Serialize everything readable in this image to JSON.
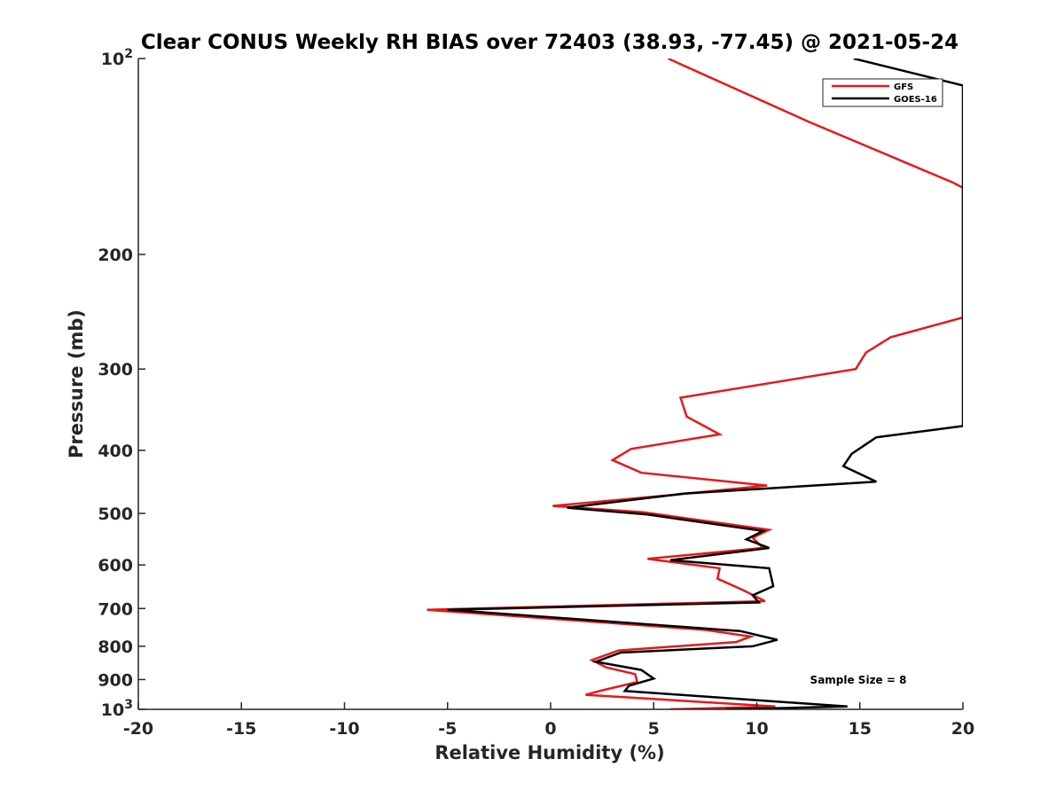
{
  "chart_data": {
    "type": "line",
    "title": "Clear CONUS Weekly RH BIAS over 72403 (38.93, -77.45) @ 2021-05-24",
    "xlabel": "Relative Humidity (%)",
    "ylabel": "Pressure (mb)",
    "xlim": [
      -20,
      20
    ],
    "ylim": [
      100,
      1000
    ],
    "y_scale": "log",
    "y_reversed": true,
    "grid": false,
    "legend_position": "top-right",
    "x_ticks": [
      -20,
      -15,
      -10,
      -5,
      0,
      5,
      10,
      15,
      20
    ],
    "x_tick_labels": [
      "-20",
      "-15",
      "-10",
      "-5",
      "0",
      "5",
      "10",
      "15",
      "20"
    ],
    "y_ticks": [
      100,
      200,
      300,
      400,
      500,
      600,
      700,
      800,
      900,
      1000
    ],
    "y_tick_labels": [
      {
        "base": "10",
        "exp": "2"
      },
      {
        "base": "200",
        "exp": ""
      },
      {
        "base": "300",
        "exp": ""
      },
      {
        "base": "400",
        "exp": ""
      },
      {
        "base": "500",
        "exp": ""
      },
      {
        "base": "600",
        "exp": ""
      },
      {
        "base": "700",
        "exp": ""
      },
      {
        "base": "800",
        "exp": ""
      },
      {
        "base": "900",
        "exp": ""
      },
      {
        "base": "10",
        "exp": "3"
      }
    ],
    "annotation": "Sample Size = 8",
    "series": [
      {
        "name": "GFS",
        "color": "#e41a1c",
        "points": [
          [
            5.7,
            100
          ],
          [
            12.5,
            125
          ],
          [
            19.5,
            155
          ],
          [
            20,
            158
          ],
          [
            20,
            250
          ],
          [
            16.5,
            268
          ],
          [
            15.3,
            283
          ],
          [
            14.8,
            300
          ],
          [
            6.3,
            332
          ],
          [
            6.6,
            355
          ],
          [
            8.2,
            378
          ],
          [
            3.9,
            398
          ],
          [
            3.0,
            414
          ],
          [
            4.4,
            433
          ],
          [
            10.5,
            453
          ],
          [
            6.0,
            468
          ],
          [
            0.1,
            487
          ],
          [
            4.5,
            498
          ],
          [
            10.6,
            530
          ],
          [
            9.8,
            545
          ],
          [
            10.3,
            565
          ],
          [
            4.7,
            587
          ],
          [
            8.2,
            607
          ],
          [
            8.1,
            630
          ],
          [
            9.3,
            655
          ],
          [
            10.4,
            682
          ],
          [
            -6.0,
            703
          ],
          [
            7.5,
            755
          ],
          [
            9.7,
            773
          ],
          [
            9.0,
            788
          ],
          [
            3.3,
            812
          ],
          [
            2.0,
            840
          ],
          [
            2.7,
            862
          ],
          [
            4.1,
            883
          ],
          [
            4.2,
            908
          ],
          [
            2.5,
            935
          ],
          [
            1.7,
            950
          ],
          [
            10.9,
            990
          ],
          [
            5.8,
            1000
          ]
        ]
      },
      {
        "name": "GOES-16",
        "color": "#000000",
        "points": [
          [
            14.7,
            100
          ],
          [
            20,
            110
          ],
          [
            20,
            367
          ],
          [
            15.8,
            382
          ],
          [
            14.6,
            405
          ],
          [
            14.2,
            423
          ],
          [
            15.8,
            447
          ],
          [
            6.5,
            466
          ],
          [
            0.8,
            490
          ],
          [
            4.7,
            502
          ],
          [
            10.3,
            532
          ],
          [
            9.5,
            548
          ],
          [
            10.6,
            565
          ],
          [
            5.8,
            590
          ],
          [
            10.6,
            607
          ],
          [
            10.8,
            647
          ],
          [
            9.8,
            668
          ],
          [
            10.1,
            685
          ],
          [
            -5.0,
            703
          ],
          [
            9.2,
            758
          ],
          [
            11.0,
            782
          ],
          [
            9.8,
            800
          ],
          [
            3.4,
            818
          ],
          [
            2.2,
            845
          ],
          [
            4.4,
            870
          ],
          [
            5.0,
            897
          ],
          [
            3.8,
            920
          ],
          [
            3.6,
            937
          ],
          [
            14.4,
            990
          ],
          [
            8.5,
            1000
          ]
        ]
      }
    ]
  }
}
